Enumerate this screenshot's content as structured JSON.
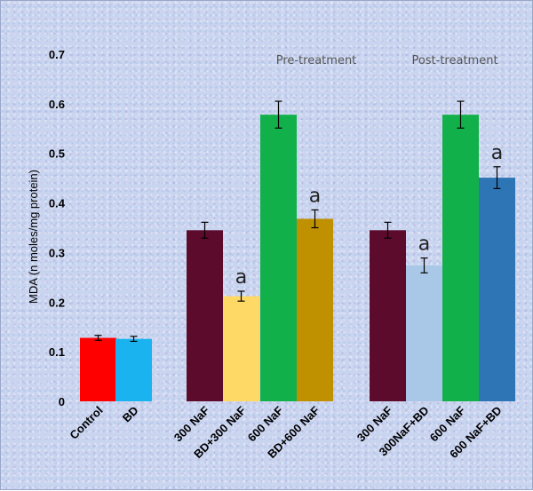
{
  "chart_data": {
    "type": "bar",
    "ylabel": "MDA (n moles/mg protein)",
    "ylim": [
      0,
      0.7
    ],
    "yticks": [
      "0",
      "0.1",
      "0.2",
      "0.3",
      "0.4",
      "0.5",
      "0.6",
      "0.7"
    ],
    "group_labels": [
      "Pre-treatment",
      "Post-treatment"
    ],
    "categories": [
      "Control",
      "BD",
      "300 NaF",
      "BD+300 NaF",
      "600 NaF",
      "BD+600 NaF",
      "300 NaF",
      "300NaF+BD",
      "600 NaF",
      "600 NaF+BD"
    ],
    "values": [
      0.128,
      0.126,
      0.345,
      0.212,
      0.578,
      0.368,
      0.345,
      0.274,
      0.578,
      0.451
    ],
    "errors": [
      0.005,
      0.005,
      0.016,
      0.01,
      0.027,
      0.018,
      0.016,
      0.015,
      0.027,
      0.022
    ],
    "annotations": [
      "",
      "",
      "",
      "a",
      "",
      "a",
      "",
      "a",
      "",
      "a"
    ],
    "colors": [
      "#ff0000",
      "#1ab3f0",
      "#5c0b2c",
      "#ffd966",
      "#12b04a",
      "#bf9000",
      "#5c0b2c",
      "#a9c8e8",
      "#12b04a",
      "#2e75b6"
    ],
    "grid": false,
    "legend": "none"
  }
}
